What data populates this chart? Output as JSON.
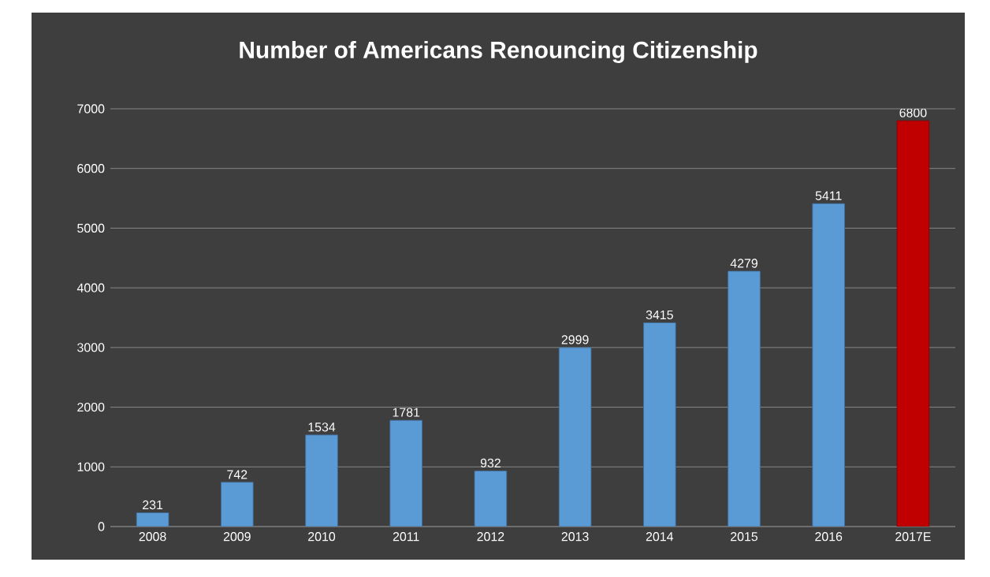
{
  "chart_data": {
    "type": "bar",
    "title": "Number of Americans Renouncing Citizenship",
    "categories": [
      "2008",
      "2009",
      "2010",
      "2011",
      "2012",
      "2013",
      "2014",
      "2015",
      "2016",
      "2017E"
    ],
    "values": [
      231,
      742,
      1534,
      1781,
      932,
      2999,
      3415,
      4279,
      5411,
      6800
    ],
    "colors": [
      "#5b9bd5",
      "#5b9bd5",
      "#5b9bd5",
      "#5b9bd5",
      "#5b9bd5",
      "#5b9bd5",
      "#5b9bd5",
      "#5b9bd5",
      "#5b9bd5",
      "#c00000"
    ],
    "ylim": [
      0,
      7000
    ],
    "yticks": [
      0,
      1000,
      2000,
      3000,
      4000,
      5000,
      6000,
      7000
    ],
    "grid": "y",
    "data_labels": true
  }
}
